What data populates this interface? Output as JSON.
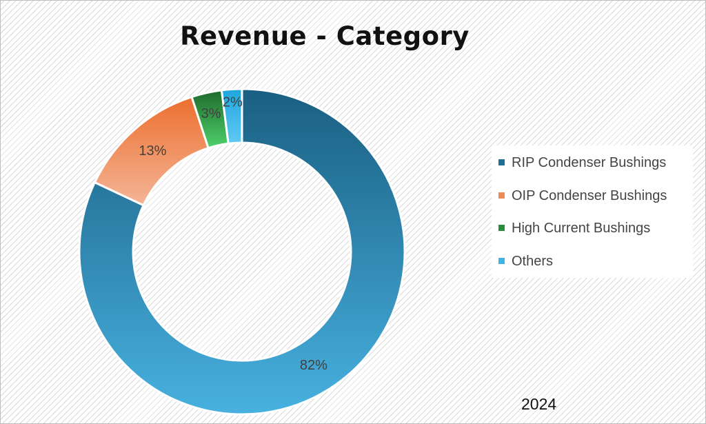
{
  "chart_data": {
    "type": "pie",
    "variant": "donut",
    "title": "Revenue - Category",
    "categories": [
      "RIP Condenser Bushings",
      "OIP Condenser Bushings",
      "High Current Bushings",
      "Others"
    ],
    "values": [
      82,
      13,
      3,
      2
    ],
    "data_labels": [
      "82%",
      "13%",
      "3%",
      "2%"
    ],
    "legend_position": "right",
    "colors": [
      [
        "#1a5f82",
        "#48b1e0"
      ],
      [
        "#ec6f2e",
        "#f4b597"
      ],
      [
        "#1e6a2c",
        "#4fd16a"
      ],
      [
        "#1ea6de",
        "#62c9f2"
      ]
    ],
    "swatch_colors": [
      "#1f6e96",
      "#ee8a55",
      "#2a8a3e",
      "#3fb3e4"
    ],
    "annotation": "2024"
  }
}
